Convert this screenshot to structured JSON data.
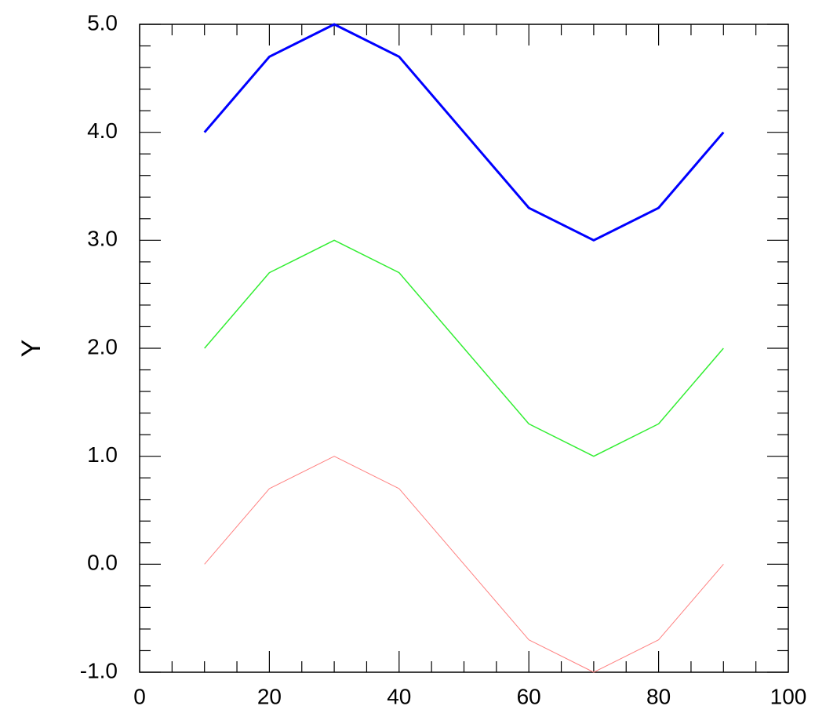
{
  "chart_data": {
    "type": "line",
    "y_label": "Y",
    "x": [
      10,
      20,
      30,
      40,
      50,
      60,
      70,
      80,
      90
    ],
    "series": [
      {
        "color": "#0000ff",
        "line_width": 3,
        "values": [
          4.0,
          4.7,
          5.0,
          4.7,
          4.0,
          3.3,
          3.0,
          3.3,
          4.0
        ]
      },
      {
        "color": "#33ee33",
        "line_width": 1.5,
        "values": [
          2.0,
          2.7,
          3.0,
          2.7,
          2.0,
          1.3,
          1.0,
          1.3,
          2.0
        ]
      },
      {
        "color": "#ff8080",
        "line_width": 1,
        "values": [
          0.0,
          0.7,
          1.0,
          0.7,
          0.0,
          -0.7,
          -1.0,
          -0.7,
          0.0
        ]
      }
    ],
    "xlim": [
      0,
      100
    ],
    "xticks": [
      0,
      20,
      40,
      60,
      80,
      100
    ],
    "x_minor_ticks": [
      5,
      10,
      15,
      25,
      30,
      35,
      45,
      50,
      55,
      65,
      70,
      75,
      85,
      90,
      95
    ],
    "ylim": [
      -1,
      5
    ],
    "yticks": [
      {
        "value": -1,
        "label": "-1.0"
      },
      {
        "value": 0,
        "label": "0.0"
      },
      {
        "value": 1,
        "label": "1.0"
      },
      {
        "value": 2,
        "label": "2.0"
      },
      {
        "value": 3,
        "label": "3.0"
      },
      {
        "value": 4,
        "label": "4.0"
      },
      {
        "value": 5,
        "label": "5.0"
      }
    ],
    "y_minor_ticks": [
      -0.8,
      -0.6,
      -0.4,
      -0.2,
      0.2,
      0.4,
      0.6,
      0.8,
      1.2,
      1.4,
      1.6,
      1.8,
      2.2,
      2.4,
      2.6,
      2.8,
      3.2,
      3.4,
      3.6,
      3.8,
      4.2,
      4.4,
      4.6,
      4.8
    ],
    "grid": false
  }
}
